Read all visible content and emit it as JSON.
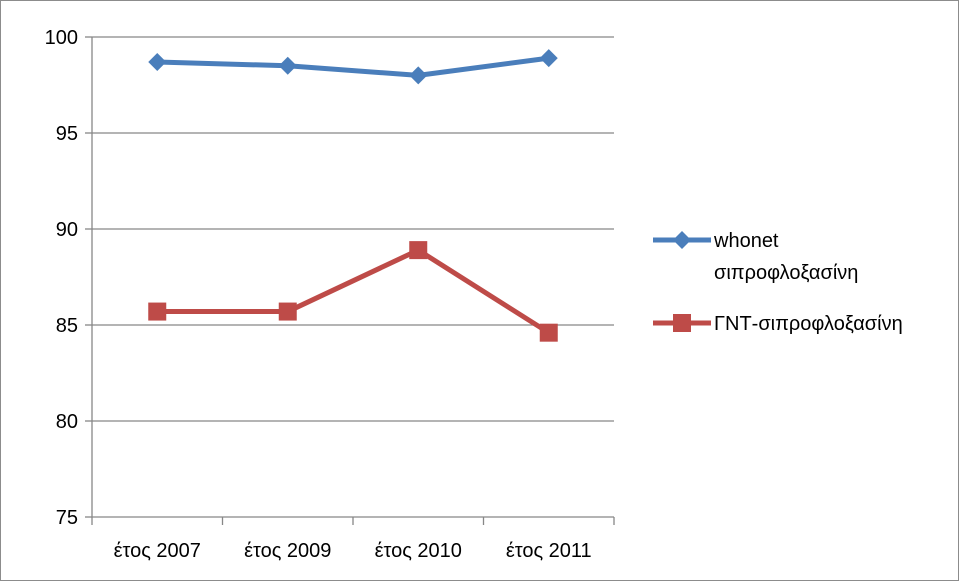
{
  "chart_data": {
    "type": "line",
    "categories": [
      "έτος 2007",
      "έτος 2009",
      "έτος 2010",
      "έτος 2011"
    ],
    "series": [
      {
        "name": "whonet σιπροφλοξασίνη",
        "legend_lines": [
          "whonet",
          "σιπροφλοξασίνη"
        ],
        "values": [
          98.7,
          98.5,
          98.0,
          98.9
        ],
        "color": "#4a7ebb",
        "marker": "diamond"
      },
      {
        "name": "ΓΝΤ-σιπροφλοξασίνη",
        "legend_lines": [
          "ΓΝΤ-σιπροφλοξασίνη"
        ],
        "values": [
          85.7,
          85.7,
          88.9,
          84.6
        ],
        "color": "#be4b48",
        "marker": "square"
      }
    ],
    "title": "",
    "xlabel": "",
    "ylabel": "",
    "ylim": [
      75,
      100
    ],
    "y_ticks": [
      75,
      80,
      85,
      90,
      95,
      100
    ],
    "grid": "horizontal",
    "legend_position": "right"
  }
}
